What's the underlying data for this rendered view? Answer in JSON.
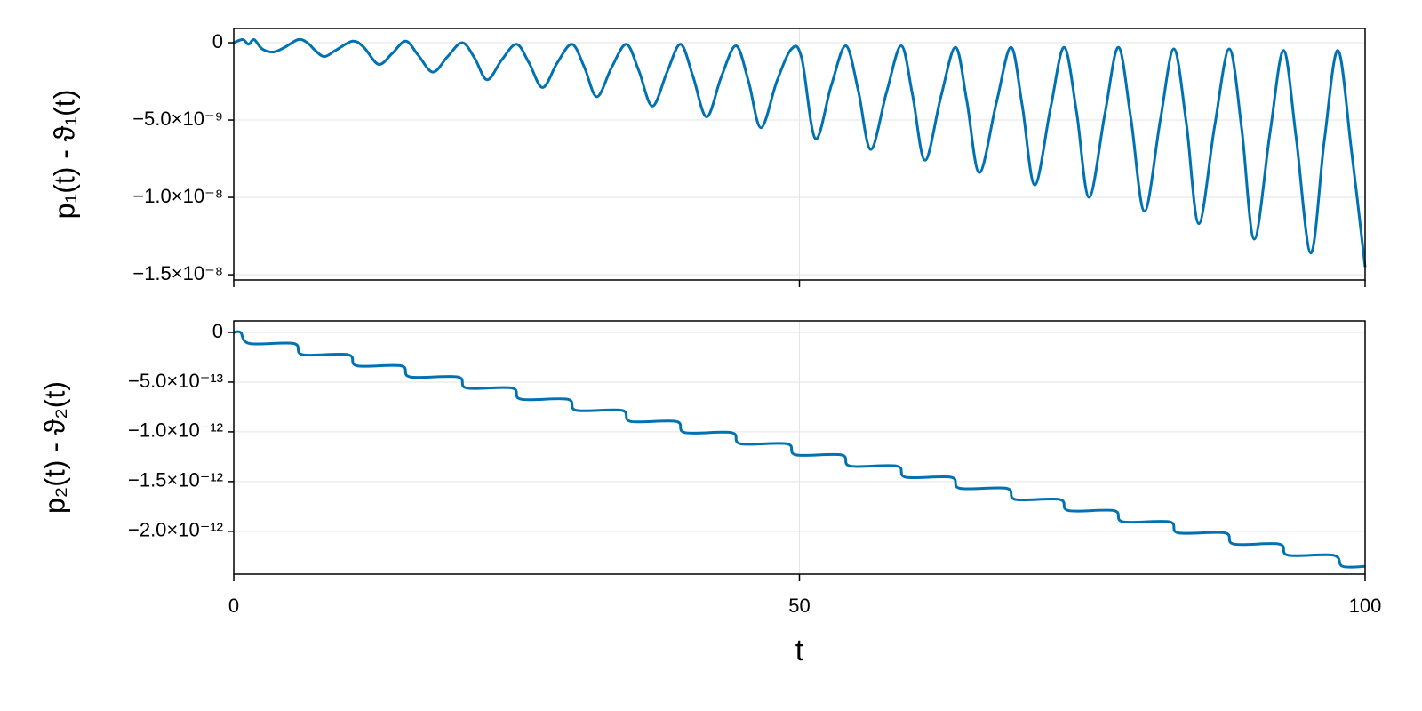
{
  "chart_data": [
    {
      "type": "line",
      "ylabel": "p₁(t) - ϑ₁(t)",
      "color": "#0072b2",
      "grid": true,
      "xlim": [
        0,
        100
      ],
      "xticks": [
        0,
        50,
        100
      ],
      "ylim": [
        -1.534e-08,
        9.2e-10
      ],
      "yticks": [
        {
          "value": -1.5e-08,
          "label": "−1.5×10⁻⁸"
        },
        {
          "value": -1e-08,
          "label": "−1.0×10⁻⁸"
        },
        {
          "value": -5e-09,
          "label": "−5.0×10⁻⁹"
        },
        0
      ],
      "x": [
        0,
        0.8,
        1.3,
        1.8,
        2.5,
        3.5,
        4.5,
        5.7,
        6.5,
        7.2,
        8,
        9,
        10.5,
        11.5,
        12.8,
        14,
        15.2,
        16.3,
        17.6,
        18.9,
        20.2,
        21.3,
        22.4,
        23.7,
        25,
        26.1,
        27.3,
        28.6,
        29.9,
        31,
        32.1,
        33.4,
        34.7,
        35.8,
        37,
        38.3,
        39.5,
        40.6,
        41.8,
        43.1,
        44.4,
        45.5,
        46.6,
        48,
        49.3,
        50.2,
        51.4,
        52.8,
        54.1,
        55.2,
        56.3,
        57.7,
        59,
        60,
        61.1,
        62.5,
        63.8,
        64.8,
        65.9,
        67.4,
        68.7,
        69.7,
        70.8,
        72.2,
        73.4,
        74.5,
        75.6,
        77,
        78.2,
        79.3,
        80.5,
        81.9,
        83.1,
        84.2,
        85.3,
        86.7,
        88,
        89.1,
        90.2,
        91.6,
        92.8,
        93.9,
        95.2,
        96.4,
        97.6,
        98.8,
        100
      ],
      "values": [
        0,
        2e-10,
        -1e-10,
        2e-10,
        -4e-10,
        -6e-10,
        -3e-10,
        2e-10,
        0,
        -5e-10,
        -9e-10,
        -5e-10,
        1e-10,
        -3e-10,
        -1.4e-09,
        -7e-10,
        1e-10,
        -8e-10,
        -1.9e-09,
        -9e-10,
        0,
        -1e-09,
        -2.4e-09,
        -1.1e-09,
        -1e-10,
        -1.3e-09,
        -2.9e-09,
        -1.3e-09,
        -1e-10,
        -1.6e-09,
        -3.5e-09,
        -1.6e-09,
        -1e-10,
        -1.8e-09,
        -4.1e-09,
        -1.9e-09,
        -1e-10,
        -2.2e-09,
        -4.8e-09,
        -2.2e-09,
        -2e-10,
        -2.5e-09,
        -5.5e-09,
        -2.5e-09,
        -4e-10,
        -1e-09,
        -6.2e-09,
        -2.8e-09,
        -2e-10,
        -3.1e-09,
        -6.9e-09,
        -3.2e-09,
        -2e-10,
        -3.4e-09,
        -7.6e-09,
        -3.5e-09,
        -3e-10,
        -3.8e-09,
        -8.4e-09,
        -3.9e-09,
        -3e-10,
        -4.1e-09,
        -9.2e-09,
        -4.2e-09,
        -3e-10,
        -4.5e-09,
        -1e-08,
        -4.6e-09,
        -3e-10,
        -4.9e-09,
        -1.09e-08,
        -5e-09,
        -4e-10,
        -5.2e-09,
        -1.17e-08,
        -5.4e-09,
        -4e-10,
        -5.6e-09,
        -1.27e-08,
        -5.8e-09,
        -5e-10,
        -6.1e-09,
        -1.36e-08,
        -6.3e-09,
        -5e-10,
        -7e-09,
        -1.45e-08
      ]
    },
    {
      "type": "line",
      "ylabel": "p₂(t) - ϑ₂(t)",
      "xlabel": "t",
      "color": "#0072b2",
      "grid": true,
      "xlim": [
        0,
        100
      ],
      "xticks": [
        0,
        50,
        100
      ],
      "ylim": [
        -2.43e-12,
        1.16e-13
      ],
      "yticks": [
        {
          "value": -2e-12,
          "label": "−2.0×10⁻¹²"
        },
        {
          "value": -1.5e-12,
          "label": "−1.5×10⁻¹²"
        },
        {
          "value": -1e-12,
          "label": "−1.0×10⁻¹²"
        },
        {
          "value": -5e-13,
          "label": "−5.0×10⁻¹³"
        },
        0
      ],
      "x": [
        0,
        0.6,
        1.4,
        5.3,
        6.1,
        10.1,
        10.9,
        14.8,
        15.6,
        19.8,
        20.6,
        24.6,
        25.4,
        29.5,
        30.3,
        34.3,
        35.1,
        39.1,
        39.9,
        44,
        44.8,
        48.9,
        49.7,
        53.7,
        54.5,
        58.6,
        59.4,
        63.4,
        64.2,
        68.3,
        69.1,
        73,
        73.8,
        77.8,
        78.6,
        82.7,
        83.5,
        87.6,
        88.4,
        92.4,
        93.2,
        97.2,
        98,
        100
      ],
      "values": [
        0,
        0,
        -1.12e-13,
        -1.12e-13,
        -2.24e-13,
        -2.24e-13,
        -3.36e-13,
        -3.36e-13,
        -4.48e-13,
        -4.48e-13,
        -5.6e-13,
        -5.6e-13,
        -6.72e-13,
        -6.72e-13,
        -7.84e-13,
        -7.84e-13,
        -8.96e-13,
        -8.96e-13,
        -1.008e-12,
        -1.008e-12,
        -1.12e-12,
        -1.12e-12,
        -1.232e-12,
        -1.232e-12,
        -1.344e-12,
        -1.344e-12,
        -1.456e-12,
        -1.456e-12,
        -1.568e-12,
        -1.568e-12,
        -1.68e-12,
        -1.68e-12,
        -1.792e-12,
        -1.792e-12,
        -1.904e-12,
        -1.904e-12,
        -2.016e-12,
        -2.016e-12,
        -2.128e-12,
        -2.128e-12,
        -2.24e-12,
        -2.24e-12,
        -2.352e-12,
        -2.352e-12
      ]
    }
  ]
}
